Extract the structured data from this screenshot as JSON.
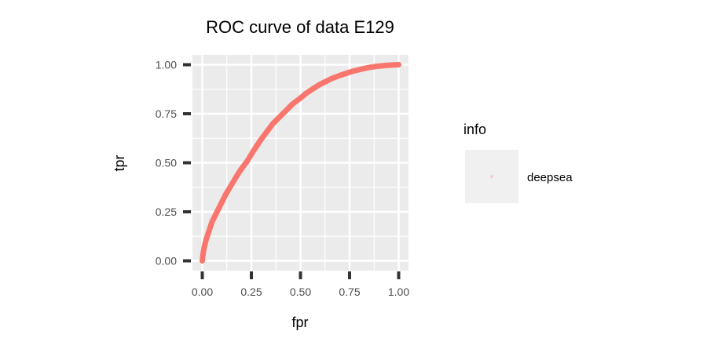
{
  "chart_data": {
    "type": "scatter",
    "title": "ROC curve of data E129",
    "xlabel": "fpr",
    "ylabel": "tpr",
    "xlim": [
      -0.05,
      1.05
    ],
    "ylim": [
      -0.05,
      1.05
    ],
    "x_ticks": [
      0.0,
      0.25,
      0.5,
      0.75,
      1.0
    ],
    "y_ticks": [
      0.0,
      0.25,
      0.5,
      0.75,
      1.0
    ],
    "x_tick_labels": [
      "0.00",
      "0.25",
      "0.50",
      "0.75",
      "1.00"
    ],
    "y_tick_labels": [
      "0.00",
      "0.25",
      "0.50",
      "0.75",
      "1.00"
    ],
    "grid": true,
    "legend": {
      "title": "info",
      "position": "right",
      "entries": [
        {
          "label": "deepsea",
          "color": "#F8766D"
        }
      ]
    },
    "series": [
      {
        "name": "deepsea",
        "color": "#F8766D",
        "x": [
          0.0,
          0.002,
          0.005,
          0.01,
          0.015,
          0.02,
          0.03,
          0.04,
          0.05,
          0.06,
          0.08,
          0.1,
          0.12,
          0.15,
          0.18,
          0.2,
          0.23,
          0.26,
          0.3,
          0.33,
          0.36,
          0.4,
          0.43,
          0.46,
          0.5,
          0.53,
          0.56,
          0.6,
          0.63,
          0.66,
          0.7,
          0.73,
          0.76,
          0.8,
          0.83,
          0.86,
          0.9,
          0.93,
          0.96,
          0.98,
          1.0
        ],
        "y": [
          0.0,
          0.02,
          0.04,
          0.07,
          0.09,
          0.11,
          0.14,
          0.17,
          0.2,
          0.22,
          0.26,
          0.3,
          0.34,
          0.39,
          0.44,
          0.47,
          0.51,
          0.56,
          0.62,
          0.66,
          0.7,
          0.74,
          0.77,
          0.8,
          0.83,
          0.855,
          0.875,
          0.9,
          0.915,
          0.93,
          0.945,
          0.955,
          0.965,
          0.975,
          0.982,
          0.988,
          0.993,
          0.996,
          0.998,
          0.999,
          1.0
        ]
      }
    ]
  }
}
